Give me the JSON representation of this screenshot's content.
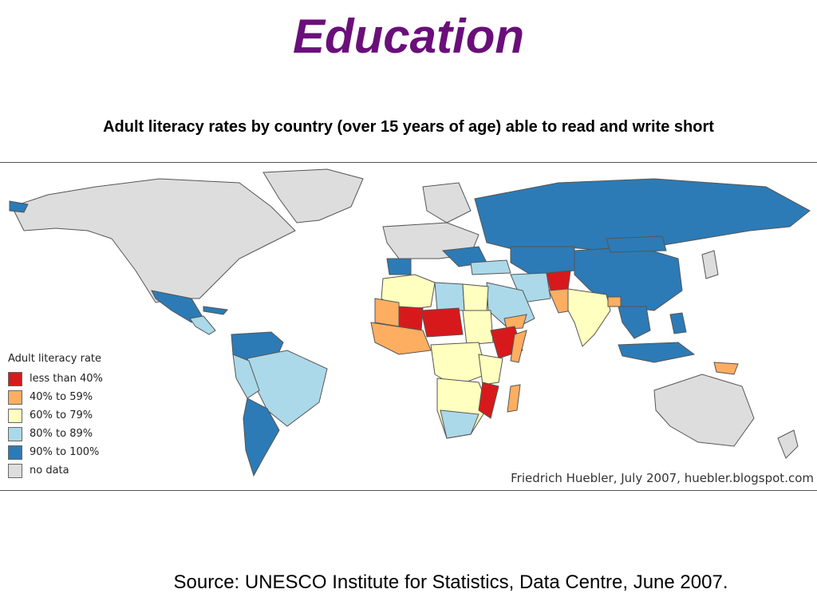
{
  "title": "Education",
  "subtitle": "Adult literacy rates by country (over 15 years of age) able to read and write short",
  "legend": {
    "title": "Adult literacy rate",
    "items": [
      {
        "label": "less than 40%",
        "color": "#d7191c"
      },
      {
        "label": "40% to 59%",
        "color": "#fdae61"
      },
      {
        "label": "60% to 79%",
        "color": "#ffffbf"
      },
      {
        "label": "80% to 89%",
        "color": "#abd9e9"
      },
      {
        "label": "90% to 100%",
        "color": "#2c7bb6"
      },
      {
        "label": "no data",
        "color": "#dddddd"
      }
    ]
  },
  "credit": "Friedrich Huebler, July 2007, huebler.blogspot.com",
  "source": "Source: UNESCO Institute for Statistics, Data Centre, June 2007."
}
